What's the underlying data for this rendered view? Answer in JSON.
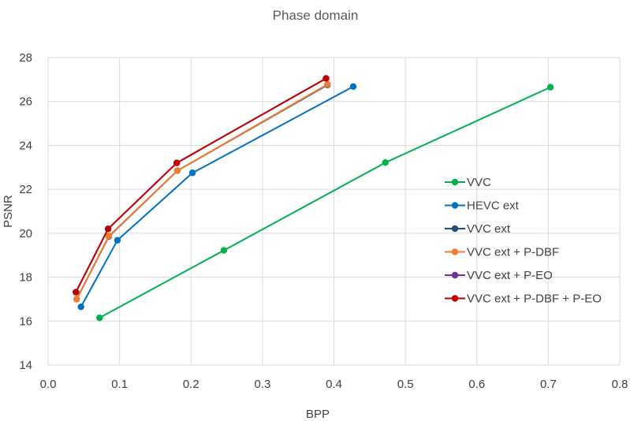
{
  "chart_data": {
    "type": "line",
    "title": "Phase domain",
    "xlabel": "BPP",
    "ylabel": "PSNR",
    "xlim": [
      0.0,
      0.8
    ],
    "ylim": [
      14,
      28
    ],
    "x_ticks": [
      "0.0",
      "0.1",
      "0.2",
      "0.3",
      "0.4",
      "0.5",
      "0.6",
      "0.7",
      "0.8"
    ],
    "y_ticks": [
      "14",
      "16",
      "18",
      "20",
      "22",
      "24",
      "26",
      "28"
    ],
    "grid": true,
    "legend_position": "right",
    "series": [
      {
        "name": "VVC",
        "color": "#00b050",
        "points": [
          [
            0.072,
            16.15
          ],
          [
            0.246,
            19.22
          ],
          [
            0.472,
            23.22
          ],
          [
            0.703,
            26.65
          ]
        ]
      },
      {
        "name": "HEVC ext",
        "color": "#0070c0",
        "points": [
          [
            0.046,
            16.65
          ],
          [
            0.097,
            19.68
          ],
          [
            0.202,
            22.75
          ],
          [
            0.427,
            26.68
          ]
        ]
      },
      {
        "name": "VVC ext",
        "color": "#1f4e79",
        "points": [
          [
            0.04,
            17.0
          ],
          [
            0.085,
            19.85
          ],
          [
            0.181,
            22.85
          ],
          [
            0.391,
            26.75
          ]
        ]
      },
      {
        "name": "VVC ext + P-DBF",
        "color": "#ed7d31",
        "points": [
          [
            0.04,
            17.0
          ],
          [
            0.085,
            19.87
          ],
          [
            0.181,
            22.85
          ],
          [
            0.391,
            26.78
          ]
        ]
      },
      {
        "name": "VVC ext + P-EO",
        "color": "#7030a0",
        "points": [
          [
            0.039,
            17.32
          ],
          [
            0.084,
            20.2
          ],
          [
            0.18,
            23.2
          ],
          [
            0.389,
            27.05
          ]
        ]
      },
      {
        "name": "VVC ext + P-DBF + P-EO",
        "color": "#c00000",
        "points": [
          [
            0.039,
            17.32
          ],
          [
            0.084,
            20.2
          ],
          [
            0.18,
            23.2
          ],
          [
            0.389,
            27.05
          ]
        ]
      }
    ]
  }
}
